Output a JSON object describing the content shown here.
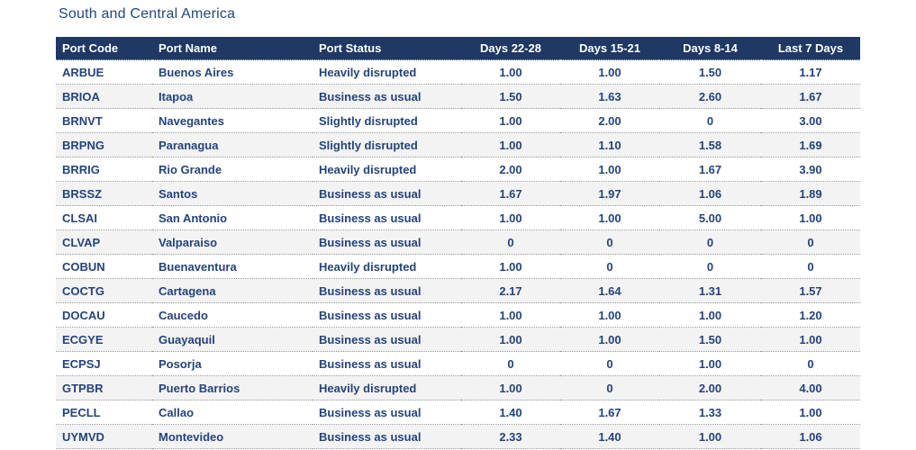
{
  "title": "South and Central America",
  "table": {
    "columns": [
      "Port Code",
      "Port Name",
      "Port Status",
      "Days 22-28",
      "Days 15-21",
      "Days 8-14",
      "Last 7 Days"
    ],
    "rows": [
      {
        "code": "ARBUE",
        "name": "Buenos Aires",
        "status": "Heavily disrupted",
        "d22_28": "1.00",
        "d15_21": "1.00",
        "d8_14": "1.50",
        "last7": "1.17"
      },
      {
        "code": "BRIOA",
        "name": "Itapoa",
        "status": "Business as usual",
        "d22_28": "1.50",
        "d15_21": "1.63",
        "d8_14": "2.60",
        "last7": "1.67"
      },
      {
        "code": "BRNVT",
        "name": "Navegantes",
        "status": "Slightly disrupted",
        "d22_28": "1.00",
        "d15_21": "2.00",
        "d8_14": "0",
        "last7": "3.00"
      },
      {
        "code": "BRPNG",
        "name": "Paranagua",
        "status": "Slightly disrupted",
        "d22_28": "1.00",
        "d15_21": "1.10",
        "d8_14": "1.58",
        "last7": "1.69"
      },
      {
        "code": "BRRIG",
        "name": "Rio Grande",
        "status": "Heavily disrupted",
        "d22_28": "2.00",
        "d15_21": "1.00",
        "d8_14": "1.67",
        "last7": "3.90"
      },
      {
        "code": "BRSSZ",
        "name": "Santos",
        "status": "Business as usual",
        "d22_28": "1.67",
        "d15_21": "1.97",
        "d8_14": "1.06",
        "last7": "1.89"
      },
      {
        "code": "CLSAI",
        "name": "San Antonio",
        "status": "Business as usual",
        "d22_28": "1.00",
        "d15_21": "1.00",
        "d8_14": "5.00",
        "last7": "1.00"
      },
      {
        "code": "CLVAP",
        "name": "Valparaiso",
        "status": "Business as usual",
        "d22_28": "0",
        "d15_21": "0",
        "d8_14": "0",
        "last7": "0"
      },
      {
        "code": "COBUN",
        "name": "Buenaventura",
        "status": "Heavily disrupted",
        "d22_28": "1.00",
        "d15_21": "0",
        "d8_14": "0",
        "last7": "0"
      },
      {
        "code": "COCTG",
        "name": "Cartagena",
        "status": "Business as usual",
        "d22_28": "2.17",
        "d15_21": "1.64",
        "d8_14": "1.31",
        "last7": "1.57"
      },
      {
        "code": "DOCAU",
        "name": "Caucedo",
        "status": "Business as usual",
        "d22_28": "1.00",
        "d15_21": "1.00",
        "d8_14": "1.00",
        "last7": "1.20"
      },
      {
        "code": "ECGYE",
        "name": "Guayaquil",
        "status": "Business as usual",
        "d22_28": "1.00",
        "d15_21": "1.00",
        "d8_14": "1.50",
        "last7": "1.00"
      },
      {
        "code": "ECPSJ",
        "name": "Posorja",
        "status": "Business as usual",
        "d22_28": "0",
        "d15_21": "0",
        "d8_14": "1.00",
        "last7": "0"
      },
      {
        "code": "GTPBR",
        "name": "Puerto Barrios",
        "status": "Heavily disrupted",
        "d22_28": "1.00",
        "d15_21": "0",
        "d8_14": "2.00",
        "last7": "4.00"
      },
      {
        "code": "PECLL",
        "name": "Callao",
        "status": "Business as usual",
        "d22_28": "1.40",
        "d15_21": "1.67",
        "d8_14": "1.33",
        "last7": "1.00"
      },
      {
        "code": "UYMVD",
        "name": "Montevideo",
        "status": "Business as usual",
        "d22_28": "2.33",
        "d15_21": "1.40",
        "d8_14": "1.00",
        "last7": "1.06"
      }
    ]
  },
  "colors": {
    "header_bg": "#1f3864",
    "header_text": "#ffffff",
    "body_text": "#24437c",
    "title_text": "#24477e",
    "alt_row_bg": "#f3f3f3",
    "row_divider": "#9a9a9a"
  }
}
